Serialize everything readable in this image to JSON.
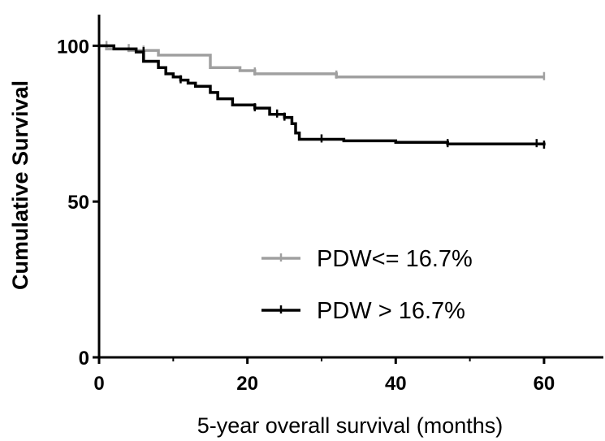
{
  "chart_data": {
    "type": "line",
    "subtype": "kaplan-meier step",
    "title": "",
    "xlabel": "5-year overall survival (months)",
    "ylabel": "Cumulative Survival",
    "xlim": [
      0,
      68
    ],
    "ylim": [
      0,
      110
    ],
    "xticks": [
      0,
      20,
      40,
      60
    ],
    "yticks": [
      0,
      50,
      100
    ],
    "grid": false,
    "legend_position": "center-right",
    "series": [
      {
        "name": "PDW<= 16.7%",
        "color": "#a0a0a0",
        "steps": [
          [
            0,
            100
          ],
          [
            1,
            99
          ],
          [
            4,
            98.5
          ],
          [
            8,
            97
          ],
          [
            15,
            93
          ],
          [
            19,
            92
          ],
          [
            21,
            91
          ],
          [
            32,
            90
          ],
          [
            60,
            90
          ]
        ],
        "censored": [
          [
            1,
            100
          ],
          [
            4,
            99
          ],
          [
            6,
            98.5
          ],
          [
            21,
            91.5
          ],
          [
            32,
            90.5
          ],
          [
            60,
            90
          ]
        ]
      },
      {
        "name": "PDW > 16.7%",
        "color": "#000000",
        "steps": [
          [
            0,
            100
          ],
          [
            2,
            99
          ],
          [
            5,
            98
          ],
          [
            6,
            95
          ],
          [
            8,
            93
          ],
          [
            9,
            91
          ],
          [
            10,
            90
          ],
          [
            11,
            89
          ],
          [
            12,
            88
          ],
          [
            13,
            87
          ],
          [
            15,
            85
          ],
          [
            16,
            83
          ],
          [
            18,
            81
          ],
          [
            21,
            80
          ],
          [
            23,
            78
          ],
          [
            25,
            77
          ],
          [
            26,
            75
          ],
          [
            26.5,
            72
          ],
          [
            27,
            70
          ],
          [
            33,
            69.5
          ],
          [
            40,
            69
          ],
          [
            47,
            68.5
          ],
          [
            60,
            68
          ]
        ],
        "censored": [
          [
            6,
            98
          ],
          [
            11,
            89
          ],
          [
            21,
            80
          ],
          [
            24,
            78
          ],
          [
            25,
            77
          ],
          [
            30,
            70
          ],
          [
            47,
            68.5
          ],
          [
            59,
            68.5
          ],
          [
            60,
            68
          ]
        ]
      }
    ]
  }
}
